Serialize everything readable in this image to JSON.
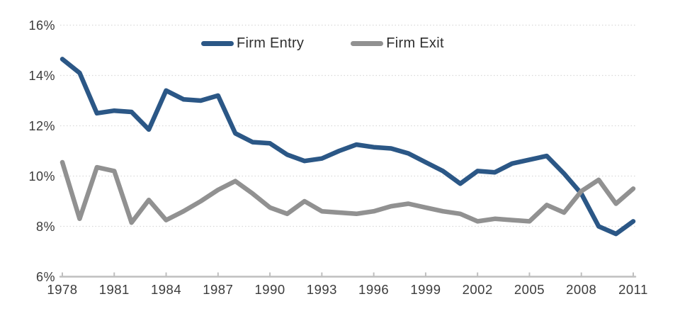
{
  "chart_data": {
    "type": "line",
    "title": "",
    "xlabel": "",
    "ylabel": "",
    "x": [
      1978,
      1979,
      1980,
      1981,
      1982,
      1983,
      1984,
      1985,
      1986,
      1987,
      1988,
      1989,
      1990,
      1991,
      1992,
      1993,
      1994,
      1995,
      1996,
      1997,
      1998,
      1999,
      2000,
      2001,
      2002,
      2003,
      2004,
      2005,
      2006,
      2007,
      2008,
      2009,
      2010,
      2011
    ],
    "x_tick_labels": [
      "1978",
      "1981",
      "1984",
      "1987",
      "1990",
      "1993",
      "1996",
      "1999",
      "2002",
      "2005",
      "2008",
      "2011"
    ],
    "y_ticks": [
      6,
      8,
      10,
      12,
      14,
      16
    ],
    "y_tick_labels": [
      "6%",
      "8%",
      "10%",
      "12%",
      "14%",
      "16%"
    ],
    "xlim": [
      1978,
      2011
    ],
    "ylim": [
      6,
      16
    ],
    "grid": "horizontal dotted lines at 8,10,12,14,16; solid baseline axis at 6 with small upward ticks",
    "legend_position": "top-center",
    "series": [
      {
        "name": "Firm Entry",
        "color": "#2b5786",
        "values": [
          14.65,
          14.1,
          12.5,
          12.6,
          12.55,
          11.85,
          13.4,
          13.05,
          13.0,
          13.2,
          11.7,
          11.35,
          11.3,
          10.85,
          10.6,
          10.7,
          11.0,
          11.25,
          11.15,
          11.1,
          10.9,
          10.55,
          10.2,
          9.7,
          10.2,
          10.15,
          10.5,
          10.65,
          10.8,
          10.1,
          9.3,
          8.0,
          7.7,
          8.2
        ]
      },
      {
        "name": "Firm Exit",
        "color": "#919191",
        "values": [
          10.55,
          8.3,
          10.35,
          10.2,
          8.15,
          9.05,
          8.25,
          8.6,
          9.0,
          9.45,
          9.8,
          9.3,
          8.75,
          8.5,
          9.0,
          8.6,
          8.55,
          8.5,
          8.6,
          8.8,
          8.9,
          8.75,
          8.6,
          8.5,
          8.2,
          8.3,
          8.25,
          8.2,
          8.85,
          8.55,
          9.4,
          9.85,
          8.9,
          9.5
        ]
      }
    ]
  },
  "colors": {
    "background": "#ffffff",
    "grid": "#d9d9d9",
    "axis": "#bfbfbf",
    "tick_text": "#3b3b3b",
    "legend_text": "#2e2e2e"
  }
}
